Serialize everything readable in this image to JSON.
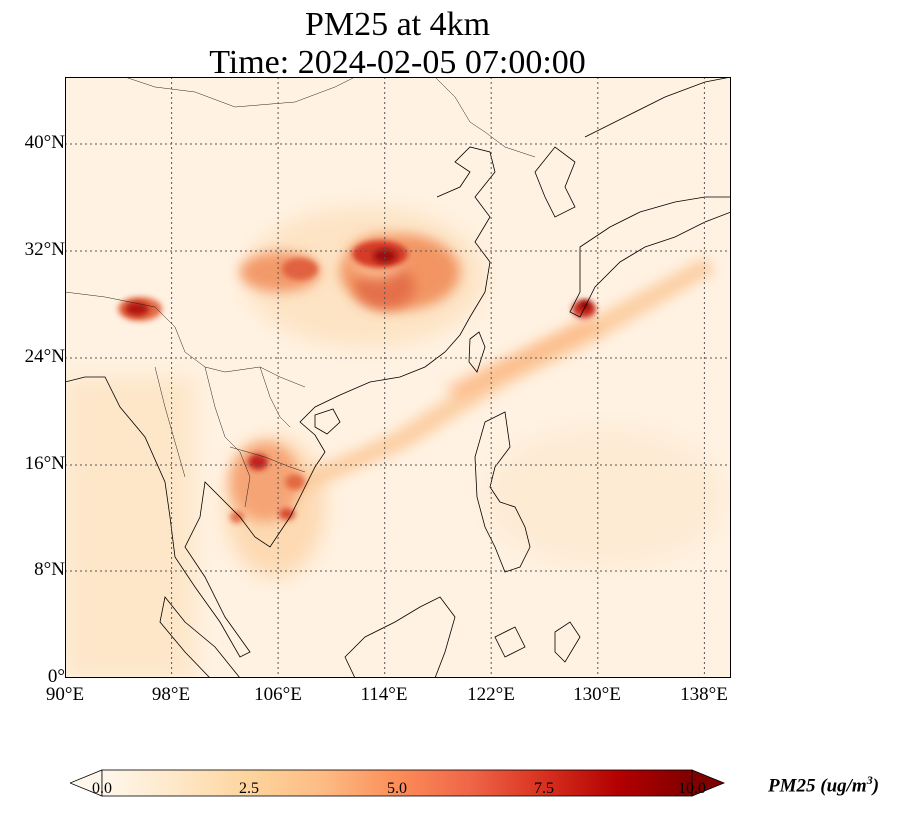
{
  "title_line1": "PM25 at 4km",
  "title_line2": "Time: 2024-02-05 07:00:00",
  "x_ticks": [
    "90°E",
    "98°E",
    "106°E",
    "114°E",
    "122°E",
    "130°E",
    "138°E"
  ],
  "y_ticks": [
    "40°N",
    "32°N",
    "24°N",
    "16°N",
    "8°N",
    "0°"
  ],
  "colorbar": {
    "label_prefix": "PM25 (ug/m",
    "label_sup": "3",
    "label_suffix": ")",
    "ticks": [
      "0.0",
      "2.5",
      "5.0",
      "7.5",
      "10.0"
    ],
    "range": [
      0,
      10
    ],
    "extend": "both",
    "colormap": "OrRd",
    "stops": [
      "#fff7ec",
      "#fee8c8",
      "#fdd49e",
      "#fdbb84",
      "#fc8d59",
      "#ef6548",
      "#d7301f",
      "#b30000",
      "#7f0000"
    ]
  },
  "map": {
    "extent_lon": [
      90,
      140
    ],
    "extent_lat": [
      0,
      45
    ],
    "gridlines": "dotted"
  }
}
